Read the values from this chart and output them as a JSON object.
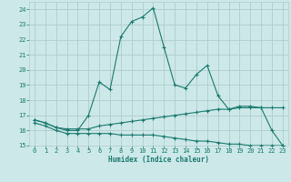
{
  "xlabel": "Humidex (Indice chaleur)",
  "x": [
    0,
    1,
    2,
    3,
    4,
    5,
    6,
    7,
    8,
    9,
    10,
    11,
    12,
    13,
    14,
    15,
    16,
    17,
    18,
    19,
    20,
    21,
    22,
    23
  ],
  "line1": [
    16.7,
    16.5,
    16.2,
    16.0,
    16.0,
    17.0,
    19.2,
    18.7,
    22.2,
    23.2,
    23.5,
    24.1,
    21.5,
    19.0,
    18.8,
    19.7,
    20.3,
    18.3,
    17.4,
    17.6,
    17.6,
    17.5,
    16.0,
    15.0
  ],
  "line2": [
    16.7,
    16.5,
    16.2,
    16.1,
    16.1,
    16.1,
    16.3,
    16.4,
    16.5,
    16.6,
    16.7,
    16.8,
    16.9,
    17.0,
    17.1,
    17.2,
    17.3,
    17.4,
    17.4,
    17.5,
    17.5,
    17.5,
    17.5,
    17.5
  ],
  "line3": [
    16.5,
    16.3,
    16.0,
    15.8,
    15.8,
    15.8,
    15.8,
    15.8,
    15.7,
    15.7,
    15.7,
    15.7,
    15.6,
    15.5,
    15.4,
    15.3,
    15.3,
    15.2,
    15.1,
    15.1,
    15.0,
    15.0,
    15.0,
    15.0
  ],
  "line_color": "#1a7a6e",
  "bg_color": "#cce8e8",
  "grid_color": "#b0cccc",
  "ylim": [
    15,
    24.5
  ],
  "yticks": [
    15,
    16,
    17,
    18,
    19,
    20,
    21,
    22,
    23,
    24
  ],
  "xlim": [
    -0.5,
    23.5
  ],
  "xticks": [
    0,
    1,
    2,
    3,
    4,
    5,
    6,
    7,
    8,
    9,
    10,
    11,
    12,
    13,
    14,
    15,
    16,
    17,
    18,
    19,
    20,
    21,
    22,
    23
  ]
}
